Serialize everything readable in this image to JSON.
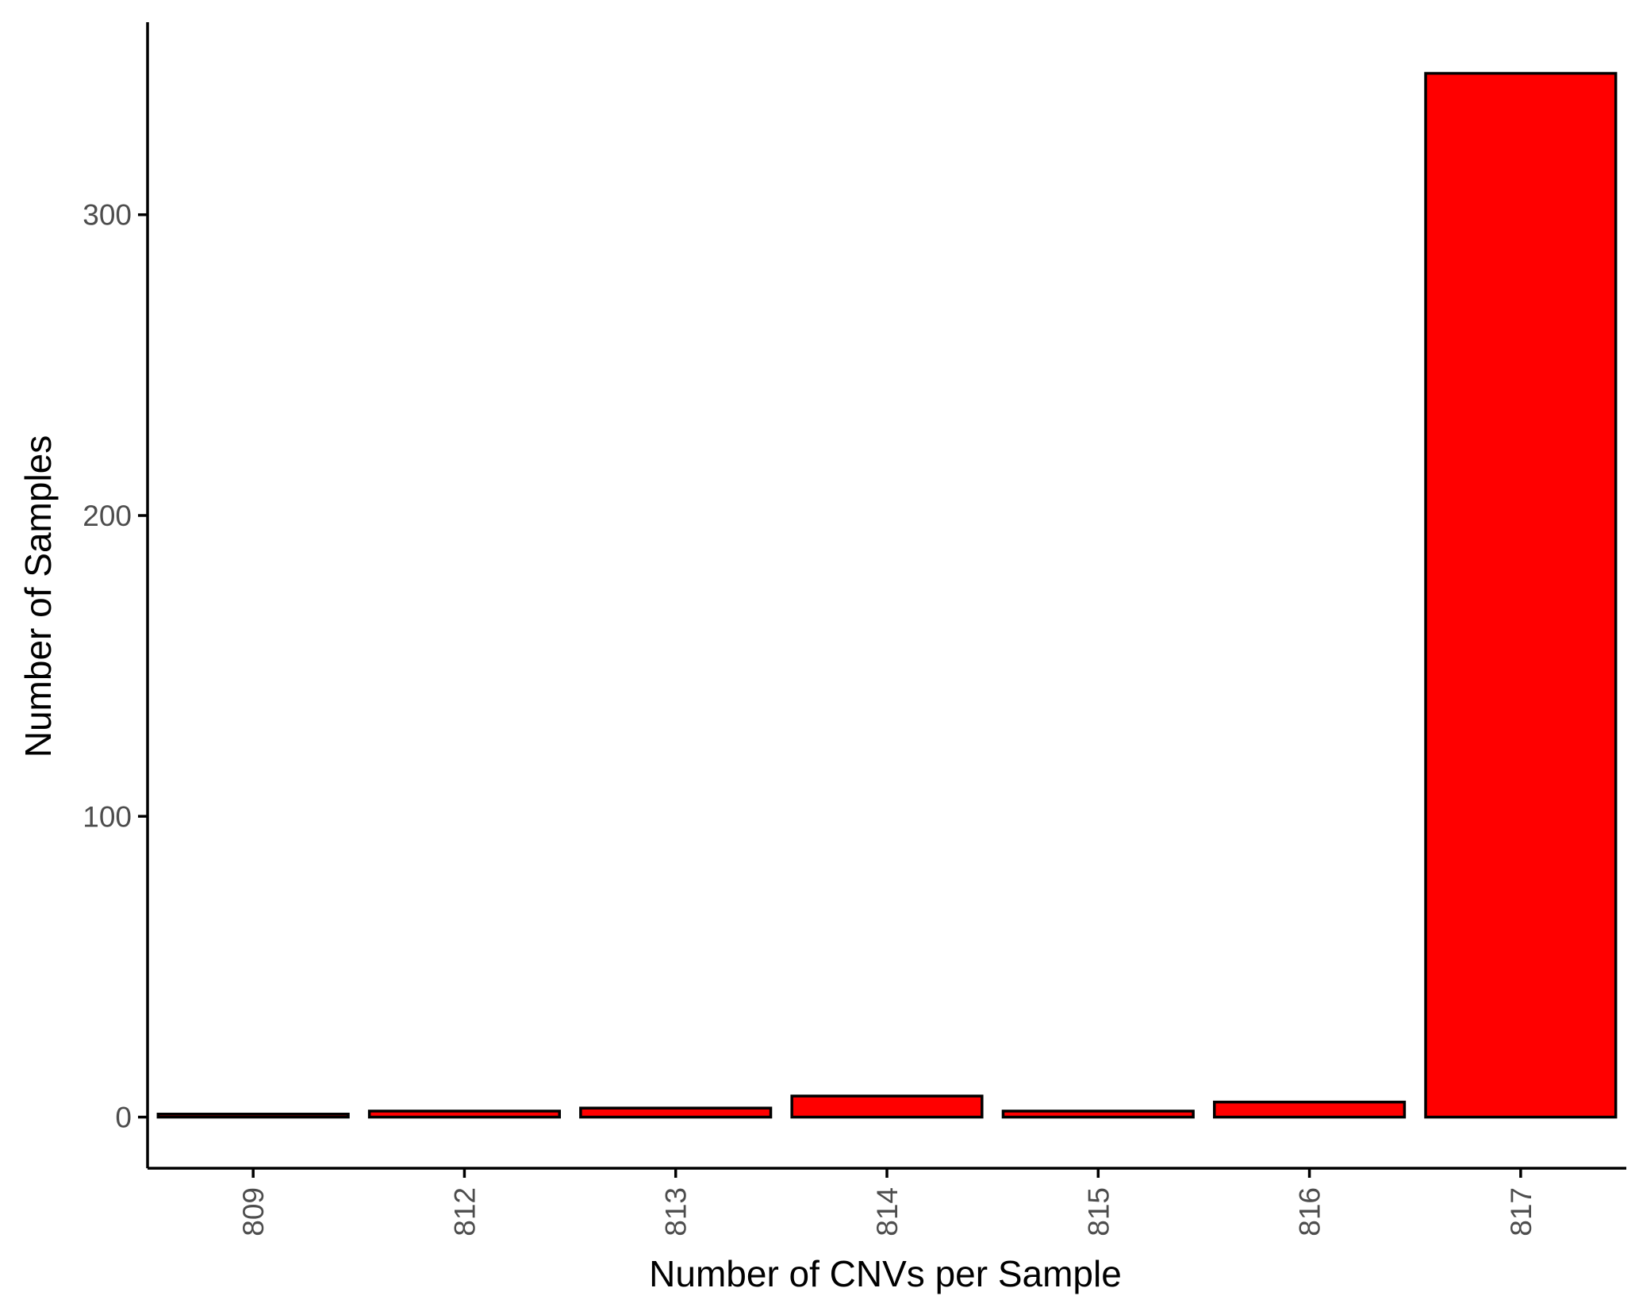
{
  "chart_data": {
    "type": "bar",
    "categories": [
      "809",
      "812",
      "813",
      "814",
      "815",
      "816",
      "817"
    ],
    "values": [
      1,
      2,
      3,
      7,
      2,
      5,
      347
    ],
    "title": "",
    "xlabel": "Number of CNVs per Sample",
    "ylabel": "Number of Samples",
    "ylim": [
      -17,
      364
    ],
    "yticks": [
      0,
      100,
      200,
      300
    ],
    "grid": false,
    "legend": "none",
    "colors": {
      "bar_fill": "#ff0000",
      "bar_outline": "#000000",
      "axis": "#000000",
      "tick_label": "#4d4d4d"
    }
  }
}
